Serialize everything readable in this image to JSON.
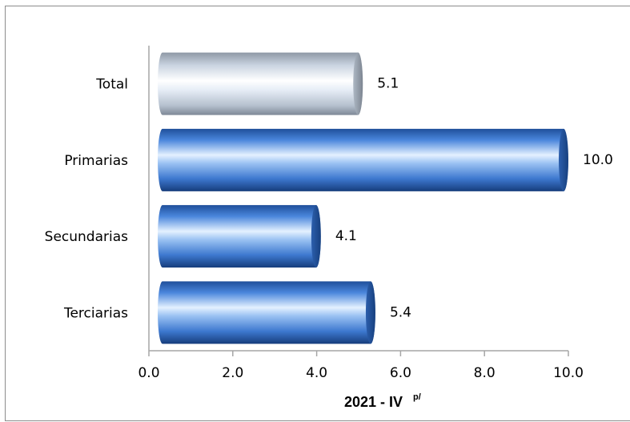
{
  "chart_data": {
    "type": "bar",
    "orientation": "horizontal",
    "categories": [
      "Total",
      "Primarias",
      "Secundarias",
      "Terciarias"
    ],
    "values": [
      5.1,
      10.0,
      4.1,
      5.4
    ],
    "data_labels": [
      "5.1",
      "10.0",
      "4.1",
      "5.4"
    ],
    "xlabel": "2021 - IV",
    "xlabel_superscript": "p/",
    "xlim": [
      0,
      10
    ],
    "xticks": [
      "0.0",
      "2.0",
      "4.0",
      "6.0",
      "8.0",
      "10.0"
    ],
    "grid": false,
    "legend": "none",
    "colors": {
      "total": "#d9e4f2",
      "sectors": "#4a84d6",
      "axis": "#a6a6a6"
    }
  }
}
